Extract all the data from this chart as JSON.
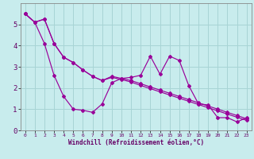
{
  "background_color": "#c8eced",
  "grid_color": "#a8d4d5",
  "line_color": "#990099",
  "xlabel": "Windchill (Refroidissement éolien,°C)",
  "xlim": [
    -0.5,
    23.5
  ],
  "ylim": [
    0,
    6
  ],
  "yticks": [
    0,
    1,
    2,
    3,
    4,
    5
  ],
  "xtick_labels": [
    "0",
    "1",
    "2",
    "3",
    "4",
    "5",
    "6",
    "7",
    "8",
    "9",
    "10",
    "11",
    "12",
    "13",
    "14",
    "15",
    "16",
    "17",
    "18",
    "19",
    "20",
    "21",
    "22",
    "23"
  ],
  "series1": [
    5.5,
    5.1,
    4.1,
    2.6,
    1.6,
    1.0,
    0.95,
    0.85,
    1.25,
    2.25,
    2.45,
    2.5,
    2.6,
    3.5,
    2.65,
    3.5,
    3.3,
    2.1,
    1.25,
    1.2,
    0.6,
    0.6,
    0.4,
    0.6
  ],
  "series2": [
    5.5,
    5.1,
    5.25,
    4.1,
    3.45,
    3.2,
    2.85,
    2.55,
    2.35,
    2.55,
    2.45,
    2.35,
    2.2,
    2.05,
    1.9,
    1.75,
    1.6,
    1.45,
    1.3,
    1.15,
    1.0,
    0.85,
    0.7,
    0.55
  ],
  "series3": [
    5.5,
    5.1,
    5.25,
    4.1,
    3.45,
    3.2,
    2.85,
    2.55,
    2.35,
    2.5,
    2.4,
    2.28,
    2.12,
    1.97,
    1.82,
    1.67,
    1.52,
    1.37,
    1.22,
    1.07,
    0.92,
    0.77,
    0.62,
    0.47
  ],
  "x_values": [
    0,
    1,
    2,
    3,
    4,
    5,
    6,
    7,
    8,
    9,
    10,
    11,
    12,
    13,
    14,
    15,
    16,
    17,
    18,
    19,
    20,
    21,
    22,
    23
  ]
}
